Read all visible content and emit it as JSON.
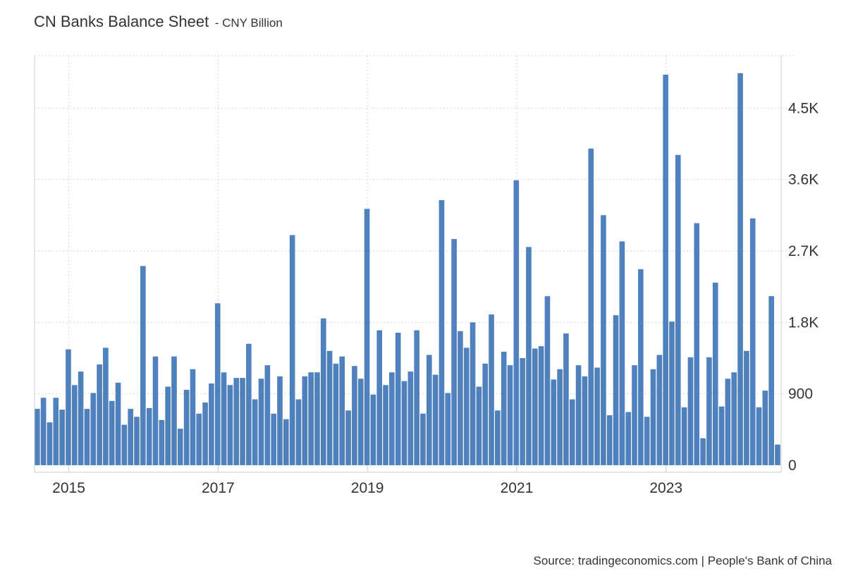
{
  "chart_data": {
    "type": "bar",
    "title": "CN Banks Balance Sheet",
    "subtitle": "- CNY Billion",
    "source": "Source: tradingeconomics.com | People's Bank of China",
    "color": "#4e81bd",
    "x_start": "2014-08",
    "x_range": [
      "2014-08",
      "2024-08"
    ],
    "x_ticks": [
      {
        "label": "2015",
        "date": "2015-01"
      },
      {
        "label": "2017",
        "date": "2017-01"
      },
      {
        "label": "2019",
        "date": "2019-01"
      },
      {
        "label": "2021",
        "date": "2021-01"
      },
      {
        "label": "2023",
        "date": "2023-01"
      }
    ],
    "ylim": [
      0,
      5160
    ],
    "y_ticks": [
      {
        "label": "0",
        "value": 0
      },
      {
        "label": "900",
        "value": 900
      },
      {
        "label": "1.8K",
        "value": 1800
      },
      {
        "label": "2.7K",
        "value": 2700
      },
      {
        "label": "3.6K",
        "value": 3600
      },
      {
        "label": "4.5K",
        "value": 4500
      }
    ],
    "grid": true,
    "y_axis_position": "right",
    "values": [
      710,
      850,
      540,
      850,
      700,
      1460,
      1010,
      1180,
      710,
      910,
      1270,
      1480,
      810,
      1040,
      510,
      710,
      610,
      2510,
      720,
      1370,
      570,
      990,
      1370,
      460,
      950,
      1210,
      650,
      790,
      1030,
      2040,
      1170,
      1010,
      1100,
      1100,
      1530,
      830,
      1090,
      1260,
      650,
      1120,
      580,
      2900,
      830,
      1120,
      1170,
      1170,
      1850,
      1440,
      1280,
      1370,
      690,
      1250,
      1090,
      3230,
      890,
      1700,
      1010,
      1170,
      1670,
      1060,
      1180,
      1700,
      650,
      1390,
      1140,
      3340,
      910,
      2850,
      1690,
      1480,
      1800,
      990,
      1280,
      1900,
      690,
      1430,
      1260,
      3590,
      1350,
      2750,
      1470,
      1500,
      2130,
      1080,
      1210,
      1660,
      830,
      1260,
      1120,
      3990,
      1230,
      3150,
      630,
      1890,
      2820,
      670,
      1260,
      2470,
      610,
      1210,
      1390,
      4920,
      1810,
      3910,
      730,
      1360,
      3050,
      340,
      1360,
      2300,
      740,
      1090,
      1170,
      4940,
      1440,
      3110,
      730,
      940,
      2130,
      260
    ]
  }
}
